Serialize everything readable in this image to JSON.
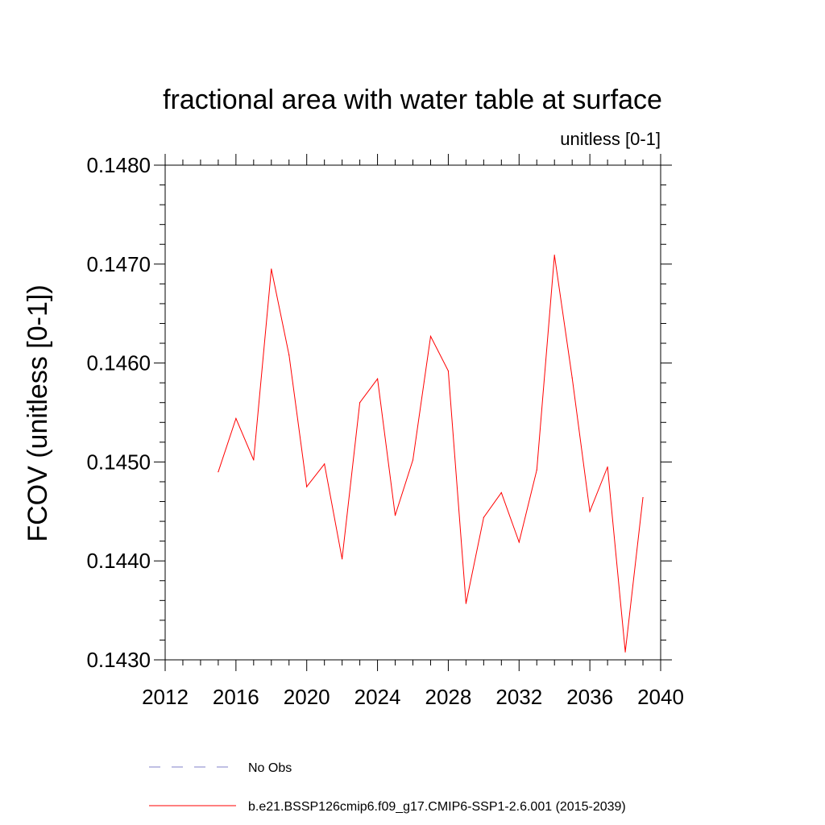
{
  "chart_data": {
    "type": "line",
    "title": "fractional area with water table at surface",
    "units_label": "unitless [0-1]",
    "ylabel": "FCOV  (unitless [0-1])",
    "xlabel": "",
    "xlim": [
      2012,
      2040
    ],
    "ylim": [
      0.143,
      0.148
    ],
    "x_ticks": [
      2012,
      2016,
      2020,
      2024,
      2028,
      2032,
      2036,
      2040
    ],
    "x_tick_labels": [
      "2012",
      "2016",
      "2020",
      "2024",
      "2028",
      "2032",
      "2036",
      "2040"
    ],
    "y_ticks": [
      0.143,
      0.144,
      0.145,
      0.146,
      0.147,
      0.148
    ],
    "y_tick_labels": [
      "0.1430",
      "0.1440",
      "0.1450",
      "0.1460",
      "0.1470",
      "0.1480"
    ],
    "grid": false,
    "series": [
      {
        "name": "b.e21.BSSP126cmip6.f09_g17.CMIP6-SSP1-2.6.001 (2015-2039)",
        "color": "#ff0000",
        "style": "solid",
        "x": [
          2015,
          2016,
          2017,
          2018,
          2019,
          2020,
          2021,
          2022,
          2023,
          2024,
          2025,
          2026,
          2027,
          2028,
          2029,
          2030,
          2031,
          2032,
          2033,
          2034,
          2035,
          2036,
          2037,
          2038,
          2039
        ],
        "values": [
          0.1449,
          0.14544,
          0.14502,
          0.14695,
          0.14608,
          0.14475,
          0.14498,
          0.14402,
          0.1456,
          0.14584,
          0.14446,
          0.14502,
          0.14627,
          0.14592,
          0.14357,
          0.14444,
          0.14469,
          0.14419,
          0.14492,
          0.14709,
          0.14585,
          0.1445,
          0.14495,
          0.14308,
          0.14464
        ]
      }
    ],
    "legend": {
      "placement": "bottom",
      "entries": [
        {
          "label": "No Obs",
          "color": "#8080c8",
          "style": "dashed"
        },
        {
          "label": "b.e21.BSSP126cmip6.f09_g17.CMIP6-SSP1-2.6.001 (2015-2039)",
          "color": "#ff0000",
          "style": "solid"
        }
      ]
    }
  }
}
